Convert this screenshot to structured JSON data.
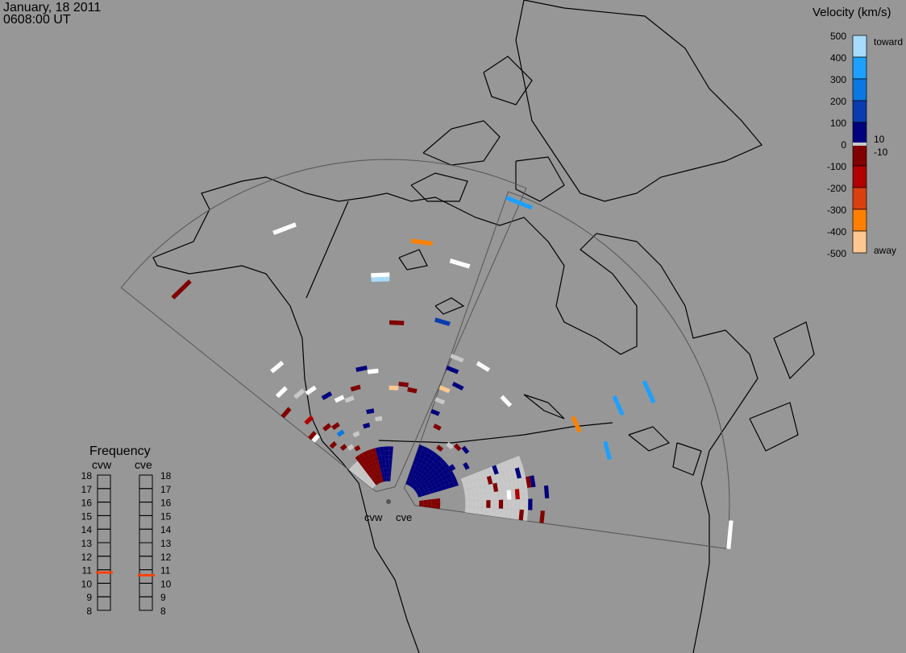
{
  "header": {
    "date": "January, 18 2011",
    "time": "0608:00 UT"
  },
  "velocity_scale": {
    "title": "Velocity (km/s)",
    "ticks": [
      "500",
      "400",
      "300",
      "200",
      "100",
      "0",
      "-100",
      "-200",
      "-300",
      "-400",
      "-500"
    ],
    "toward_label": "toward",
    "away_label": "away",
    "inner_labels": [
      "10",
      "-10"
    ],
    "bins": [
      {
        "range": [
          400,
          500
        ],
        "color": "#a8dcff"
      },
      {
        "range": [
          300,
          400
        ],
        "color": "#1ea0ff"
      },
      {
        "range": [
          200,
          300
        ],
        "color": "#0a78e0"
      },
      {
        "range": [
          100,
          200
        ],
        "color": "#0a3cb0"
      },
      {
        "range": [
          10,
          100
        ],
        "color": "#00007e"
      },
      {
        "range": [
          -10,
          10
        ],
        "color": "#c8c8c8"
      },
      {
        "range": [
          -100,
          -10
        ],
        "color": "#800000"
      },
      {
        "range": [
          -200,
          -100
        ],
        "color": "#b00000"
      },
      {
        "range": [
          -300,
          -200
        ],
        "color": "#d84010"
      },
      {
        "range": [
          -400,
          -300
        ],
        "color": "#ff8000"
      },
      {
        "range": [
          -500,
          -400
        ],
        "color": "#ffc890"
      }
    ],
    "ground_scatter_color": "#c8c8c8",
    "saturated_color": "#ffffff"
  },
  "frequency": {
    "title": "Frequency",
    "unit_ticks": [
      "18",
      "17",
      "16",
      "15",
      "14",
      "13",
      "12",
      "11",
      "10",
      "9",
      "8"
    ],
    "radars": [
      {
        "name": "cvw",
        "value_mhz": 10.8
      },
      {
        "name": "cve",
        "value_mhz": 10.6
      }
    ],
    "marker_color": "#ff4000"
  },
  "radars": [
    {
      "name": "cvw",
      "label": "cvw"
    },
    {
      "name": "cve",
      "label": "cve"
    }
  ],
  "cells": [
    [
      "cvw",
      1,
      64,
      -60
    ],
    [
      "cvw",
      6,
      63,
      600
    ],
    [
      "cvw",
      10,
      48,
      600
    ],
    [
      "cvw",
      10,
      47,
      450
    ],
    [
      "cvw",
      11,
      37,
      -60
    ],
    [
      "cvw",
      14,
      39,
      150
    ],
    [
      "cvw",
      12,
      56,
      -350
    ],
    [
      "cvw",
      14,
      53,
      600
    ],
    [
      "cvw",
      2,
      36,
      600
    ],
    [
      "cvw",
      1,
      31,
      600
    ],
    [
      "cvw",
      0,
      27,
      -60
    ],
    [
      "cvw",
      2,
      28,
      "gs"
    ],
    [
      "cvw",
      3,
      27,
      600
    ],
    [
      "cvw",
      4,
      24,
      60
    ],
    [
      "cvw",
      5,
      22,
      600
    ],
    [
      "cvw",
      7,
      23,
      -60
    ],
    [
      "cvw",
      8,
      27,
      60
    ],
    [
      "cvw",
      9,
      26,
      600
    ],
    [
      "cvw",
      6,
      21,
      "gs"
    ],
    [
      "cvw",
      1,
      22,
      -150
    ],
    [
      "cvw",
      0,
      19,
      -60
    ],
    [
      "cvw",
      0,
      18,
      600
    ],
    [
      "cvw",
      2,
      18,
      -60
    ],
    [
      "cvw",
      3,
      15,
      250
    ],
    [
      "cvw",
      3,
      17,
      -60
    ],
    [
      "cvw",
      4,
      10,
      -60
    ],
    [
      "cvw",
      11,
      22,
      -420
    ],
    [
      "cvw",
      12,
      23,
      -60
    ],
    [
      "cvw",
      13,
      22,
      -60
    ],
    [
      "cvw",
      2,
      12,
      -60
    ],
    [
      "cvw",
      1,
      14,
      -60
    ],
    [
      "cvw",
      3,
      11,
      "gs"
    ],
    [
      "cvw",
      5,
      13,
      "gs"
    ],
    [
      "cvw",
      7,
      14,
      60
    ],
    [
      "cvw",
      9,
      15,
      "gs"
    ],
    [
      "cvw",
      8,
      17,
      60
    ],
    [
      "cve",
      0,
      19,
      60
    ],
    [
      "cve",
      0,
      22,
      "gs"
    ],
    [
      "cve",
      1,
      16,
      -60
    ],
    [
      "cve",
      0,
      25,
      -450
    ],
    [
      "cve",
      0,
      30,
      60
    ],
    [
      "cve",
      0,
      33,
      "gs"
    ],
    [
      "cve",
      1,
      27,
      60
    ],
    [
      "cve",
      2,
      34,
      600
    ],
    [
      "cve",
      5,
      31,
      600
    ],
    [
      "cve",
      9,
      42,
      -350
    ],
    [
      "cve",
      9,
      53,
      350
    ],
    [
      "cve",
      9,
      61,
      350
    ],
    [
      "cve",
      11,
      47,
      350
    ],
    [
      "cve",
      15,
      75,
      600
    ],
    [
      "cve",
      0,
      73,
      350
    ],
    [
      "cve",
      8,
      14,
      60
    ],
    [
      "cve",
      14,
      27,
      60
    ],
    [
      "cve",
      12,
      28,
      60
    ],
    [
      "cve",
      13,
      31,
      60
    ],
    [
      "cve",
      14,
      20,
      -60
    ],
    [
      "cve",
      12,
      19,
      -60
    ],
    [
      "cve",
      15,
      25,
      -60
    ],
    [
      "cve",
      12,
      27,
      -60
    ],
    [
      "cve",
      15,
      30,
      -60
    ],
    [
      "cve",
      11,
      18,
      -60
    ],
    [
      "cve",
      13,
      22,
      600
    ],
    [
      "cve",
      10,
      20,
      60
    ],
    [
      "cve",
      6,
      16,
      60
    ],
    [
      "cve",
      5,
      15,
      -60
    ],
    [
      "cve",
      4,
      14,
      "gs"
    ],
    [
      "cve",
      3,
      12,
      -60
    ],
    [
      "cve",
      7,
      11,
      60
    ],
    [
      "cve",
      11,
      25,
      60
    ],
    [
      "cve",
      13,
      24,
      -150
    ],
    [
      "cve",
      14,
      17,
      -60
    ],
    [
      "cve",
      10,
      24,
      "gs"
    ]
  ],
  "blocks": [
    {
      "radar": "cve",
      "beams": [
        0,
        10
      ],
      "gates": [
        1,
        10
      ],
      "velocity": 60
    },
    {
      "radar": "cve",
      "beams": [
        10,
        15
      ],
      "gates": [
        12,
        26
      ],
      "velocity": "gs"
    },
    {
      "radar": "cve",
      "beams": [
        13,
        15
      ],
      "gates": [
        1,
        5
      ],
      "velocity": -60
    },
    {
      "radar": "cvw",
      "beams": [
        8,
        11
      ],
      "gates": [
        1,
        8
      ],
      "velocity": 60
    },
    {
      "radar": "cvw",
      "beams": [
        3,
        7
      ],
      "gates": [
        1,
        8
      ],
      "velocity": -60
    },
    {
      "radar": "cvw",
      "beams": [
        0,
        2
      ],
      "gates": [
        1,
        7
      ],
      "velocity": "gs"
    }
  ]
}
